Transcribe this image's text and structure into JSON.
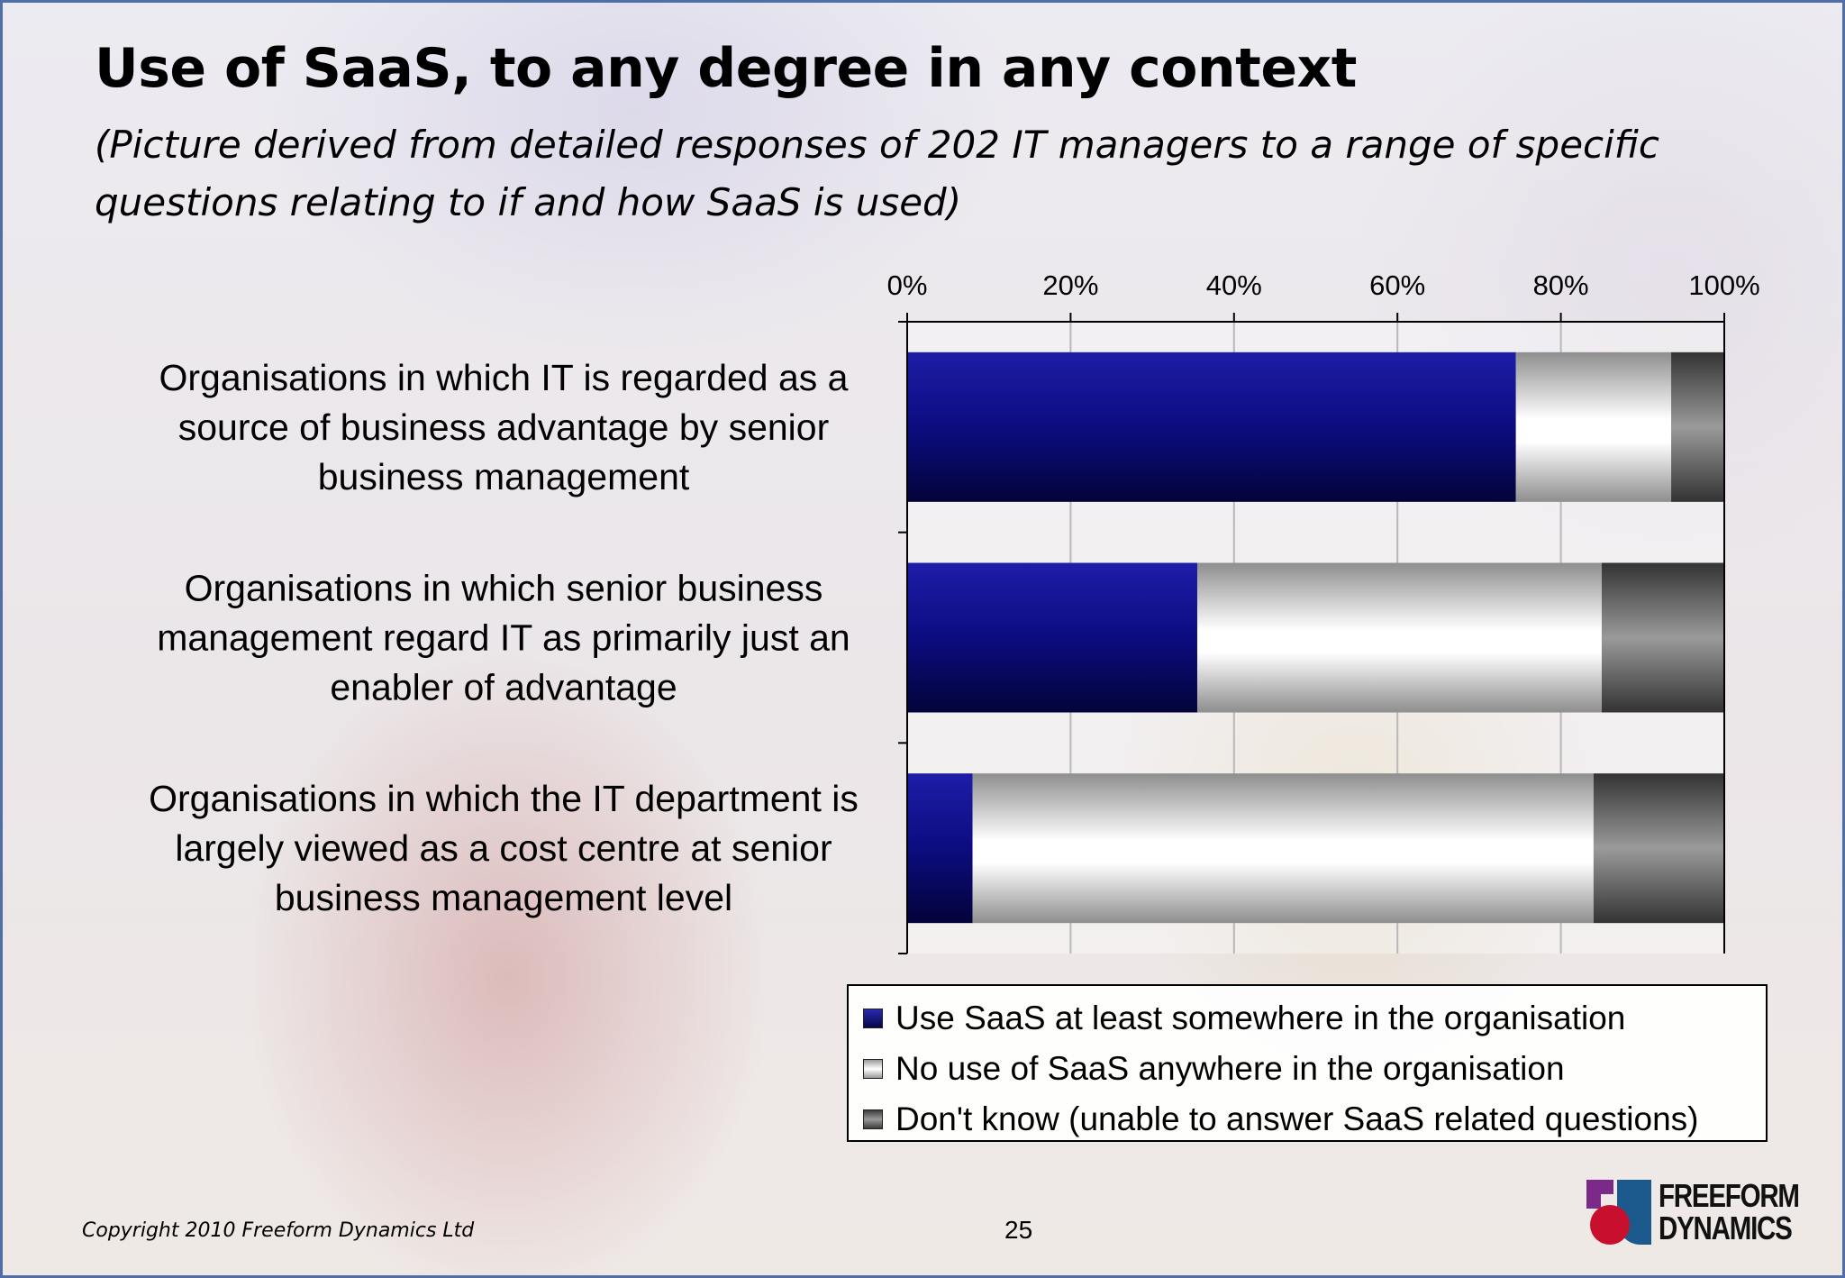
{
  "title": "Use of SaaS, to any degree in any context",
  "subtitle": "(Picture derived from detailed responses of 202 IT managers to a range of specific questions relating to if and how SaaS is used)",
  "chart_data": {
    "type": "bar",
    "orientation": "horizontal",
    "stacked": true,
    "categories": [
      [
        "Organisations in which IT is regarded as a",
        "source of business advantage by senior",
        "business management"
      ],
      [
        "Organisations in which senior business",
        "management regard IT as primarily just an",
        "enabler of advantage"
      ],
      [
        "Organisations in which the IT department is",
        "largely viewed as a cost centre at senior",
        "business management level"
      ]
    ],
    "series": [
      {
        "name": "Use SaaS at least somewhere in the organisation",
        "values": [
          74.5,
          35.5,
          8
        ],
        "color": "#0a0a7a"
      },
      {
        "name": "No use of SaaS anywhere in the organisation",
        "values": [
          19,
          49.5,
          76
        ],
        "color": "#f4f4f4"
      },
      {
        "name": "Don't know (unable to answer SaaS related questions)",
        "values": [
          6.5,
          15,
          16
        ],
        "color": "#6c6c6c"
      }
    ],
    "xlim": [
      0,
      100
    ],
    "x_ticks": [
      "0%",
      "20%",
      "40%",
      "60%",
      "80%",
      "100%"
    ],
    "x_tick_values": [
      0,
      20,
      40,
      60,
      80,
      100
    ],
    "x_axis_position": "top",
    "grid": true,
    "legend_placement": "bottom-right"
  },
  "footer": {
    "copyright": "Copyright 2010 Freeform Dynamics Ltd",
    "page_number": "25"
  },
  "logo": {
    "line1": "FREEFORM",
    "line2": "DYNAMICS",
    "colors": [
      "#7b2a8a",
      "#1c5a8e",
      "#c8102e"
    ]
  }
}
